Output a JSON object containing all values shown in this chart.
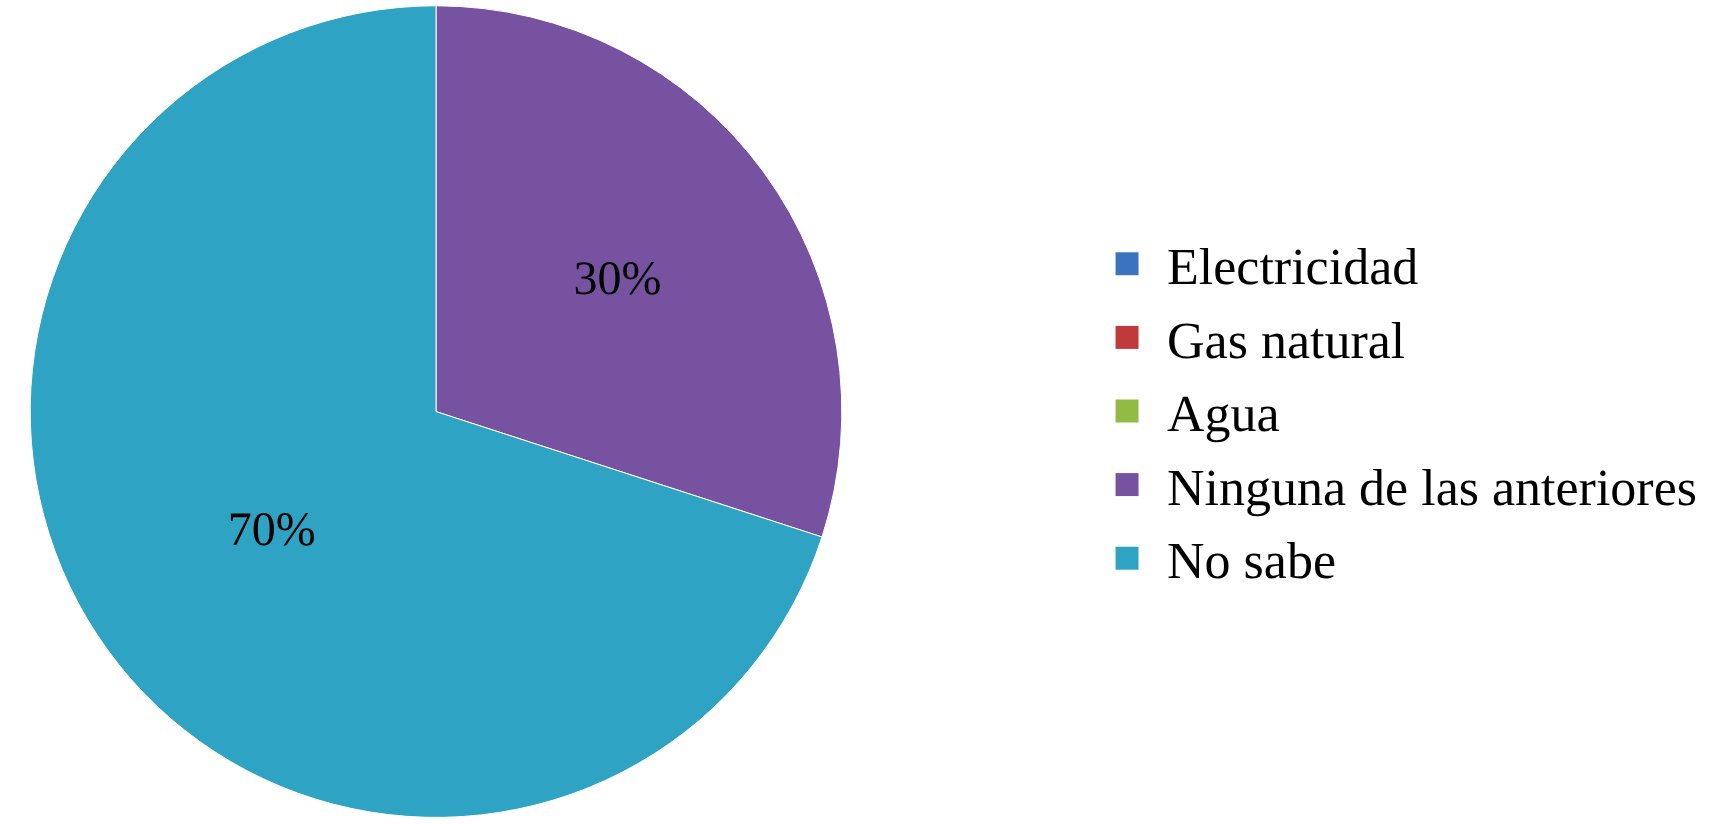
{
  "chart_data": {
    "type": "pie",
    "categories": [
      "Electricidad",
      "Gas natural",
      "Agua",
      "Ninguna de las anteriores",
      "No sabe"
    ],
    "values": [
      0,
      0,
      0,
      30,
      70
    ],
    "colors": [
      "#3b73bd",
      "#c0393b",
      "#92bb45",
      "#7652a0",
      "#2fa3c3"
    ],
    "value_labels": [
      null,
      null,
      null,
      "30%",
      "70%"
    ],
    "legend": "right"
  }
}
